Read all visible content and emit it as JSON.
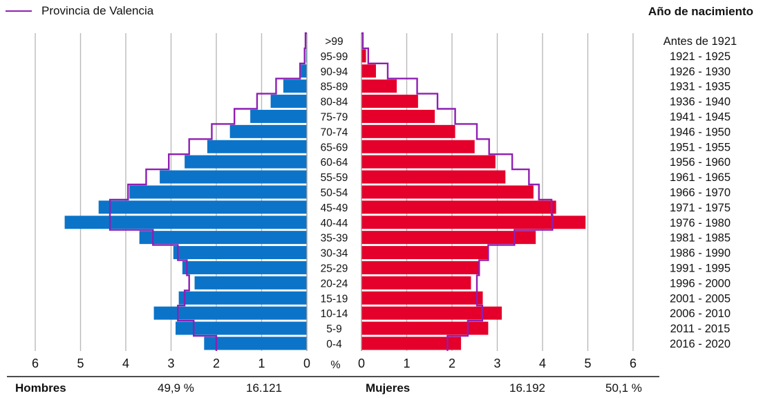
{
  "legend": {
    "label": "Provincia de Valencia",
    "color": "#8e1fb3"
  },
  "birth_year_title": "Año de nacimiento",
  "footer": {
    "men_label": "Hombres",
    "men_percent": "49,9 %",
    "men_count": "16.121",
    "women_label": "Mujeres",
    "women_count": "16.192",
    "women_percent": "50,1 %"
  },
  "chart_data": {
    "type": "bar",
    "orientation": "horizontal",
    "unit": "%",
    "age_groups": [
      ">99",
      "95-99",
      "90-94",
      "85-89",
      "80-84",
      "75-79",
      "70-74",
      "65-69",
      "60-64",
      "55-59",
      "50-54",
      "45-49",
      "40-44",
      "35-39",
      "30-34",
      "25-29",
      "20-24",
      "15-19",
      "10-14",
      "5-9",
      "0-4"
    ],
    "birth_years": [
      "Antes de 1921",
      "1921 - 1925",
      "1926 - 1930",
      "1931 - 1935",
      "1936 - 1940",
      "1941 - 1945",
      "1946 - 1950",
      "1951 - 1955",
      "1956 - 1960",
      "1961 - 1965",
      "1966 - 1970",
      "1971 - 1975",
      "1976 - 1980",
      "1981 - 1985",
      "1986 - 1990",
      "1991 - 1995",
      "1996 - 2000",
      "2001 - 2005",
      "2006 - 2010",
      "2011 - 2015",
      "2016 - 2020"
    ],
    "series": [
      {
        "name": "Hombres",
        "color": "#0b74c9",
        "values": [
          0,
          0.02,
          0.13,
          0.52,
          0.8,
          1.25,
          1.7,
          2.2,
          2.7,
          3.25,
          3.92,
          4.6,
          5.35,
          3.7,
          2.95,
          2.75,
          2.48,
          2.83,
          3.38,
          2.9,
          2.27
        ]
      },
      {
        "name": "Mujeres",
        "color": "#e4002b",
        "values": [
          0,
          0.1,
          0.32,
          0.78,
          1.25,
          1.62,
          2.07,
          2.5,
          2.96,
          3.18,
          3.8,
          4.3,
          4.95,
          3.85,
          2.8,
          2.6,
          2.42,
          2.68,
          3.1,
          2.8,
          2.2
        ]
      },
      {
        "name": "Provincia de Valencia",
        "role": "outline",
        "values_men": [
          0.03,
          0.05,
          0.15,
          0.68,
          1.1,
          1.6,
          2.1,
          2.6,
          3.05,
          3.55,
          3.95,
          4.35,
          4.35,
          3.4,
          2.85,
          2.65,
          2.6,
          2.7,
          2.85,
          2.5,
          2.0
        ],
        "values_women": [
          0.03,
          0.15,
          0.58,
          1.23,
          1.68,
          2.07,
          2.55,
          2.82,
          3.33,
          3.7,
          3.92,
          4.2,
          4.22,
          3.38,
          2.8,
          2.6,
          2.55,
          2.55,
          2.67,
          2.35,
          1.9
        ]
      }
    ],
    "x_ticks": [
      "6",
      "5",
      "4",
      "3",
      "2",
      "1",
      "0",
      "0",
      "1",
      "2",
      "3",
      "4",
      "5",
      "6"
    ],
    "x_unit_label": "%",
    "xlim": [
      0,
      6
    ],
    "grid": true
  }
}
